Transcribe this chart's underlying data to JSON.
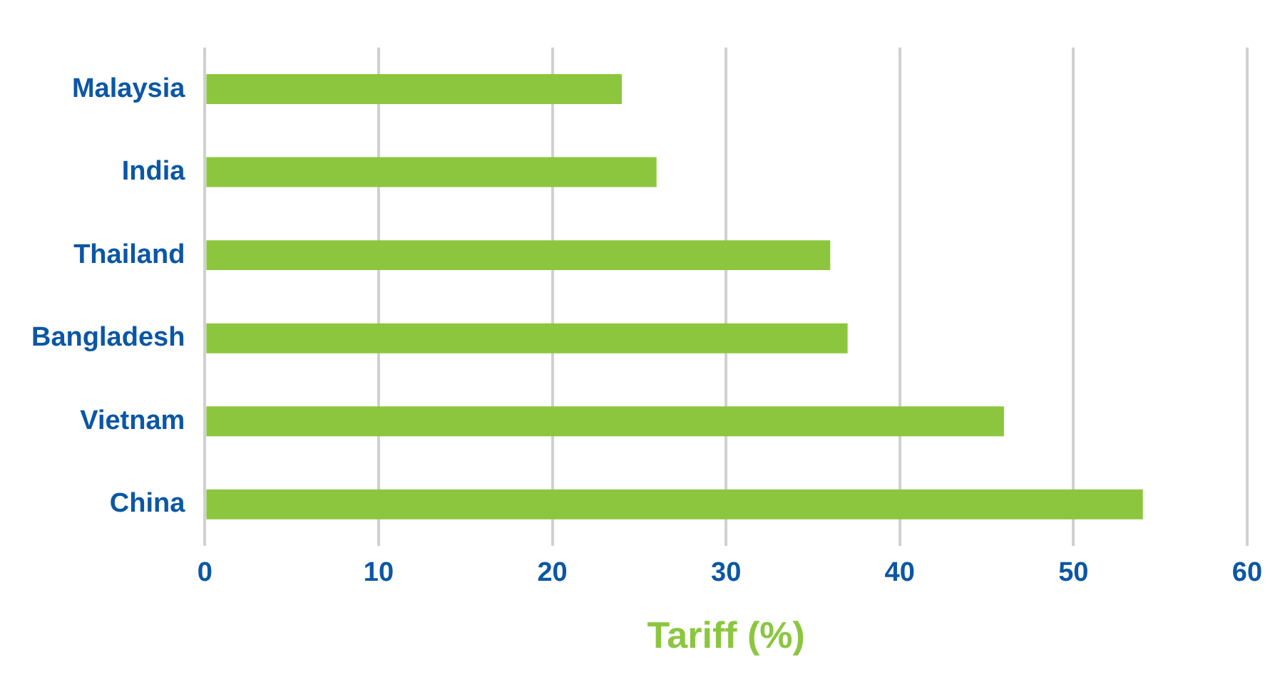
{
  "chart_data": {
    "type": "bar",
    "orientation": "horizontal",
    "xlabel": "Tariff (%)",
    "categories": [
      "Malaysia",
      "India",
      "Thailand",
      "Bangladesh",
      "Vietnam",
      "China"
    ],
    "series": [
      {
        "color": "#8cc63f",
        "values": [
          24,
          26,
          36,
          37,
          46,
          54
        ]
      }
    ],
    "xlim": [
      0,
      60
    ],
    "xticks": [
      0,
      10,
      20,
      30,
      40,
      50,
      60
    ],
    "grid": "x",
    "legend": false
  }
}
